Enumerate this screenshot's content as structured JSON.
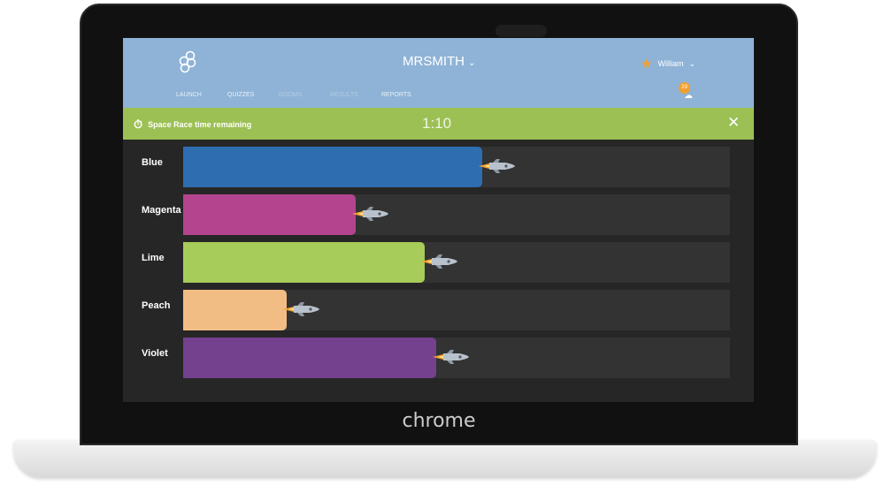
{
  "device": {
    "brand": "chrome"
  },
  "header": {
    "class_name": "MRSMITH",
    "user_name": "William",
    "notification_count": "29",
    "nav": [
      {
        "label": "LAUNCH",
        "dim": false
      },
      {
        "label": "QUIZZES",
        "dim": false
      },
      {
        "label": "ROOMS",
        "dim": true
      },
      {
        "label": "RESULTS",
        "dim": true
      },
      {
        "label": "REPORTS",
        "dim": false
      }
    ]
  },
  "banner": {
    "label": "Space Race time remaining",
    "time": "1:10",
    "close": "✕"
  },
  "teams": [
    {
      "name": "Blue",
      "color": "#2e6db0",
      "progress": 0.547
    },
    {
      "name": "Magenta",
      "color": "#b5448f",
      "progress": 0.316
    },
    {
      "name": "Lime",
      "color": "#a8cc5a",
      "progress": 0.442
    },
    {
      "name": "Peach",
      "color": "#f1bd85",
      "progress": 0.189
    },
    {
      "name": "Violet",
      "color": "#74418f",
      "progress": 0.463
    }
  ]
}
